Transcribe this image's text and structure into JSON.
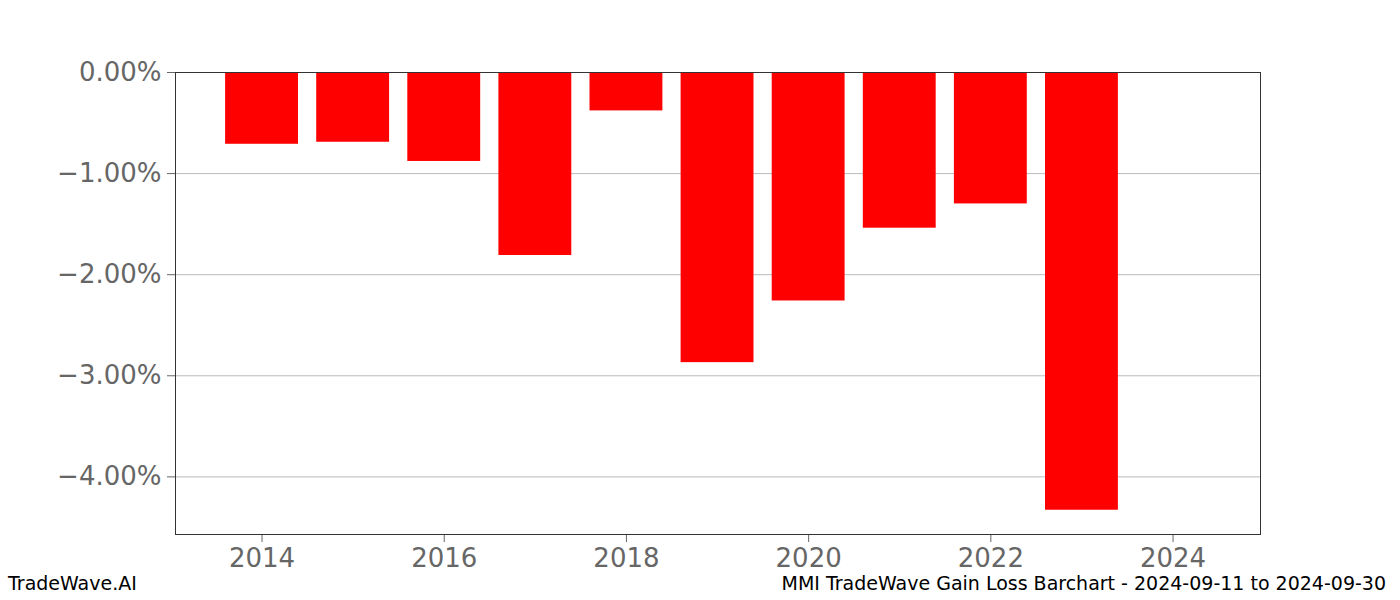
{
  "chart_data": {
    "type": "bar",
    "title": "MMI TradeWave Gain Loss Barchart - 2024-09-11 to 2024-09-30",
    "annotations": [
      "TradeWave.AI"
    ],
    "x": [
      2014,
      2015,
      2016,
      2017,
      2018,
      2019,
      2020,
      2021,
      2022,
      2023
    ],
    "values": [
      -0.71,
      -0.69,
      -0.88,
      -1.81,
      -0.38,
      -2.87,
      -2.26,
      -1.54,
      -1.3,
      -4.33
    ],
    "color": "#ff0000",
    "xlim": [
      2013.05,
      2024.96
    ],
    "xticks": [
      2014,
      2016,
      2018,
      2020,
      2022,
      2024
    ],
    "ylim": [
      -4.57,
      0
    ],
    "yticks": [
      {
        "value": 0,
        "label": "0.00%"
      },
      {
        "value": -1,
        "label": "−1.00%"
      },
      {
        "value": -2,
        "label": "−2.00%"
      },
      {
        "value": -3,
        "label": "−3.00%"
      },
      {
        "value": -4,
        "label": "−4.00%"
      }
    ],
    "grid": true
  }
}
